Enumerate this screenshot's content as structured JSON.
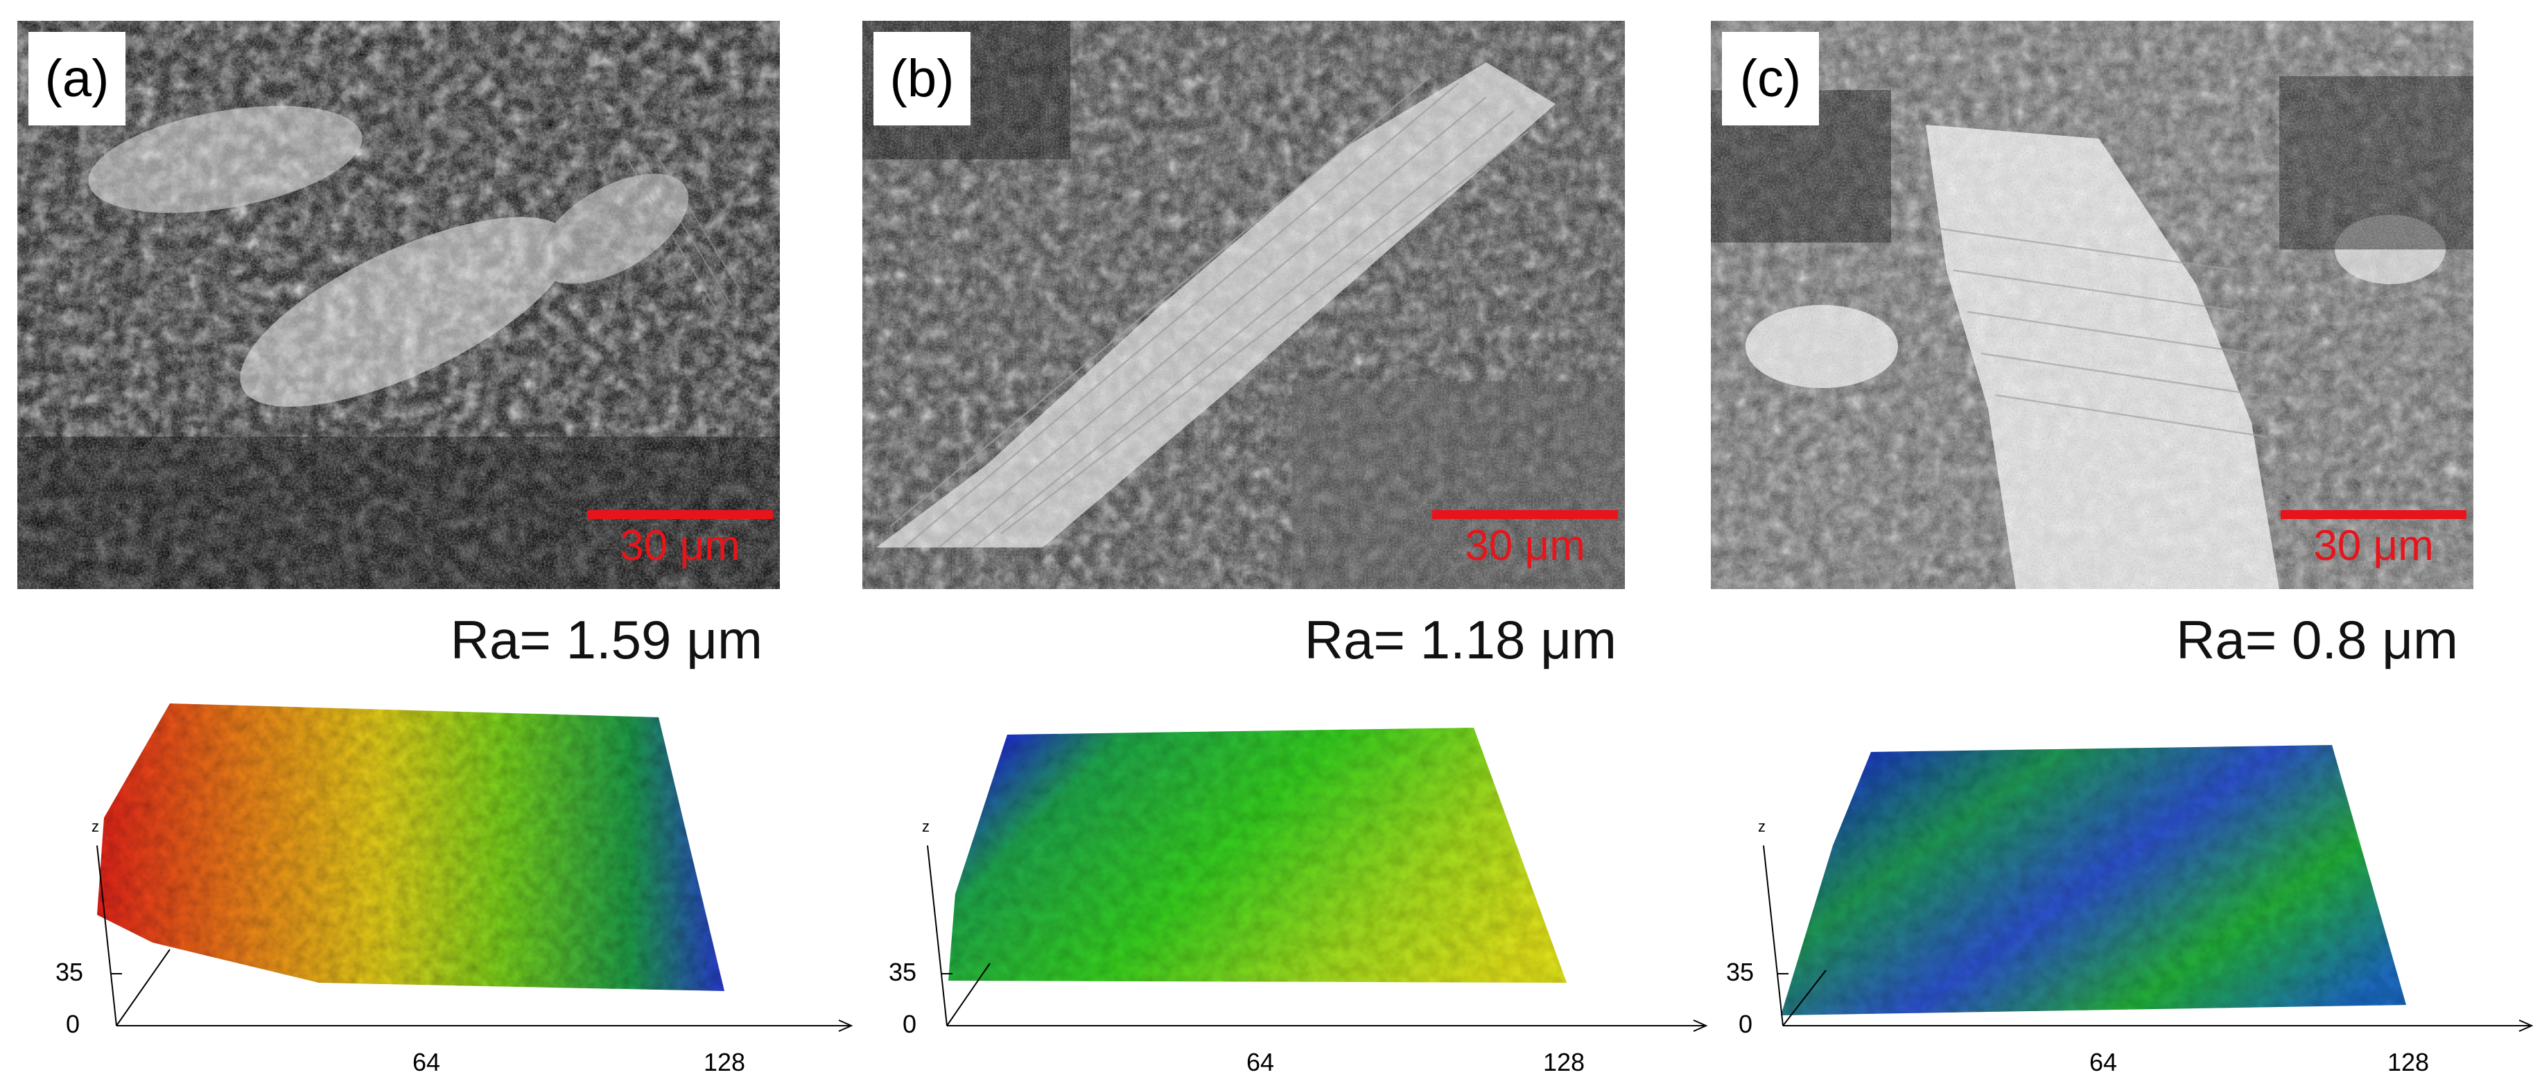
{
  "colors": {
    "scale_bar": "#e8141c",
    "background": "#ffffff"
  },
  "panels": [
    {
      "label": "(a)",
      "scale_bar_label": "30 μm",
      "ra": "Ra= 1.59 μm",
      "topography": {
        "z_label": "z",
        "z_ticks": [
          "0",
          "35"
        ],
        "x_ticks": [
          "64",
          "128"
        ]
      }
    },
    {
      "label": "(b)",
      "scale_bar_label": "30 μm",
      "ra": "Ra= 1.18 μm",
      "topography": {
        "z_label": "z",
        "z_ticks": [
          "0",
          "35"
        ],
        "x_ticks": [
          "64",
          "128"
        ]
      }
    },
    {
      "label": "(c)",
      "scale_bar_label": "30 μm",
      "ra": "Ra= 0.8 μm",
      "topography": {
        "z_label": "z",
        "z_ticks": [
          "0",
          "35"
        ],
        "x_ticks": [
          "64",
          "128"
        ]
      }
    }
  ]
}
